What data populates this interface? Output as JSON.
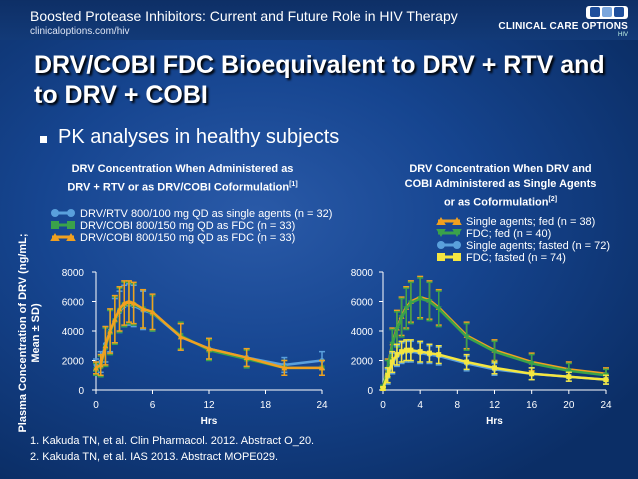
{
  "header": {
    "title": "Boosted Protease Inhibitors: Current and Future Role in HIV Therapy",
    "url": "clinicaloptions.com/hiv",
    "logo_badge": "CCO",
    "logo_text": "CLINICAL CARE OPTIONS",
    "logo_sub": "HIV"
  },
  "slide": {
    "title": "DRV/COBI FDC Bioequivalent to DRV + RTV and to DRV + COBI",
    "bullet": "PK analyses in healthy subjects",
    "ylabel": "Plasma Concentration of DRV (ng/mL; Mean ± SD)",
    "references": [
      "1. Kakuda TN, et al. Clin Pharmacol. 2012. Abstract O_20.",
      "2. Kakuda TN, et al. IAS 2013. Abstract MOPE029."
    ]
  },
  "chart_data": [
    {
      "type": "line",
      "title_line1": "DRV Concentration When Administered as",
      "title_line2": "DRV + RTV or as DRV/COBI Coformulation",
      "title_ref": "[1]",
      "xlabel": "Hrs",
      "ylabel": "Plasma Concentration of DRV (ng/mL; Mean ± SD)",
      "xlim": [
        0,
        24
      ],
      "ylim": [
        0,
        8000
      ],
      "xticks": [
        0,
        6,
        12,
        18,
        24
      ],
      "yticks": [
        0,
        2000,
        4000,
        6000,
        8000
      ],
      "legend_position": "top",
      "series": [
        {
          "name": "DRV/RTV 800/100 mg QD as single agents (n = 32)",
          "color": "#5aa0dc",
          "marker": "circle",
          "x": [
            0,
            0.5,
            1,
            1.5,
            2,
            2.5,
            3,
            3.5,
            4,
            5,
            6,
            9,
            12,
            16,
            20,
            24
          ],
          "y": [
            1700,
            1900,
            3100,
            4000,
            4700,
            5300,
            5700,
            5800,
            5700,
            5400,
            5200,
            3600,
            2800,
            2200,
            1700,
            2000
          ],
          "sd": [
            400,
            700,
            1200,
            1400,
            1500,
            1400,
            1400,
            1400,
            1400,
            1300,
            1200,
            900,
            700,
            600,
            500,
            600
          ]
        },
        {
          "name": "DRV/COBI 800/150 mg QD as FDC (n = 33)",
          "color": "#3aa24a",
          "marker": "square",
          "x": [
            0,
            0.5,
            1,
            1.5,
            2,
            2.5,
            3,
            3.5,
            4,
            5,
            6,
            9,
            12,
            16,
            20,
            24
          ],
          "y": [
            1400,
            1600,
            2900,
            3900,
            4700,
            5400,
            5800,
            5900,
            5800,
            5500,
            5200,
            3700,
            2700,
            2100,
            1500,
            1500
          ],
          "sd": [
            400,
            700,
            1300,
            1500,
            1600,
            1500,
            1500,
            1400,
            1400,
            1300,
            1200,
            900,
            700,
            600,
            500,
            500
          ]
        },
        {
          "name": "DRV/COBI 800/150 mg QD as FDC (n = 33)",
          "color": "#f0a020",
          "marker": "triangle",
          "x": [
            0,
            0.5,
            1,
            1.5,
            2,
            2.5,
            3,
            3.5,
            4,
            5,
            6,
            9,
            12,
            16,
            20,
            24
          ],
          "y": [
            1500,
            1700,
            3000,
            4000,
            4800,
            5500,
            5900,
            6000,
            5900,
            5500,
            5300,
            3600,
            2800,
            2200,
            1500,
            1500
          ],
          "sd": [
            400,
            700,
            1300,
            1500,
            1600,
            1500,
            1500,
            1400,
            1400,
            1300,
            1200,
            900,
            700,
            600,
            500,
            500
          ]
        }
      ]
    },
    {
      "type": "line",
      "title_line1": "DRV Concentration When DRV and",
      "title_line2": "COBI Administered as Single Agents",
      "title_line3": "or as Coformulation",
      "title_ref": "[2]",
      "xlabel": "Hrs",
      "xlim": [
        0,
        24
      ],
      "ylim": [
        0,
        8000
      ],
      "xticks": [
        0,
        4,
        8,
        12,
        16,
        20,
        24
      ],
      "yticks": [
        0,
        2000,
        4000,
        6000,
        8000
      ],
      "legend_position": "top-right",
      "series": [
        {
          "name": "Single agents; fed (n = 38)",
          "color": "#f0a020",
          "marker": "triangle",
          "x": [
            0,
            0.5,
            1,
            1.5,
            2,
            2.5,
            3,
            4,
            5,
            6,
            9,
            12,
            16,
            20,
            24
          ],
          "y": [
            200,
            1500,
            3200,
            4200,
            5000,
            5600,
            6000,
            6300,
            6100,
            5600,
            3700,
            2700,
            1900,
            1400,
            1100
          ],
          "sd": [
            100,
            600,
            1000,
            1200,
            1300,
            1400,
            1400,
            1400,
            1300,
            1200,
            900,
            700,
            600,
            500,
            400
          ]
        },
        {
          "name": "FDC; fed (n = 40)",
          "color": "#3aa24a",
          "marker": "triangle-down",
          "x": [
            0,
            0.5,
            1,
            1.5,
            2,
            2.5,
            3,
            4,
            5,
            6,
            9,
            12,
            16,
            20,
            24
          ],
          "y": [
            200,
            1400,
            3100,
            4100,
            4900,
            5500,
            5900,
            6200,
            6000,
            5500,
            3600,
            2600,
            1800,
            1300,
            1000
          ],
          "sd": [
            100,
            600,
            1000,
            1200,
            1300,
            1400,
            1400,
            1400,
            1300,
            1200,
            900,
            700,
            600,
            500,
            400
          ]
        },
        {
          "name": "Single agents; fasted (n = 72)",
          "color": "#5aa0dc",
          "marker": "circle",
          "x": [
            0,
            0.5,
            1,
            1.5,
            2,
            2.5,
            3,
            4,
            5,
            6,
            9,
            12,
            16,
            20,
            24
          ],
          "y": [
            100,
            900,
            1800,
            2300,
            2500,
            2600,
            2600,
            2500,
            2400,
            2300,
            1800,
            1400,
            1100,
            900,
            700
          ],
          "sd": [
            100,
            500,
            700,
            700,
            700,
            700,
            700,
            700,
            600,
            600,
            500,
            400,
            400,
            300,
            300
          ]
        },
        {
          "name": "FDC; fasted (n = 74)",
          "color": "#f5e640",
          "marker": "square",
          "x": [
            0,
            0.5,
            1,
            1.5,
            2,
            2.5,
            3,
            4,
            5,
            6,
            9,
            12,
            16,
            20,
            24
          ],
          "y": [
            100,
            1000,
            1900,
            2400,
            2600,
            2700,
            2700,
            2600,
            2500,
            2400,
            1900,
            1500,
            1100,
            900,
            700
          ],
          "sd": [
            100,
            500,
            700,
            700,
            700,
            700,
            700,
            700,
            600,
            600,
            500,
            400,
            400,
            300,
            300
          ]
        }
      ]
    }
  ]
}
